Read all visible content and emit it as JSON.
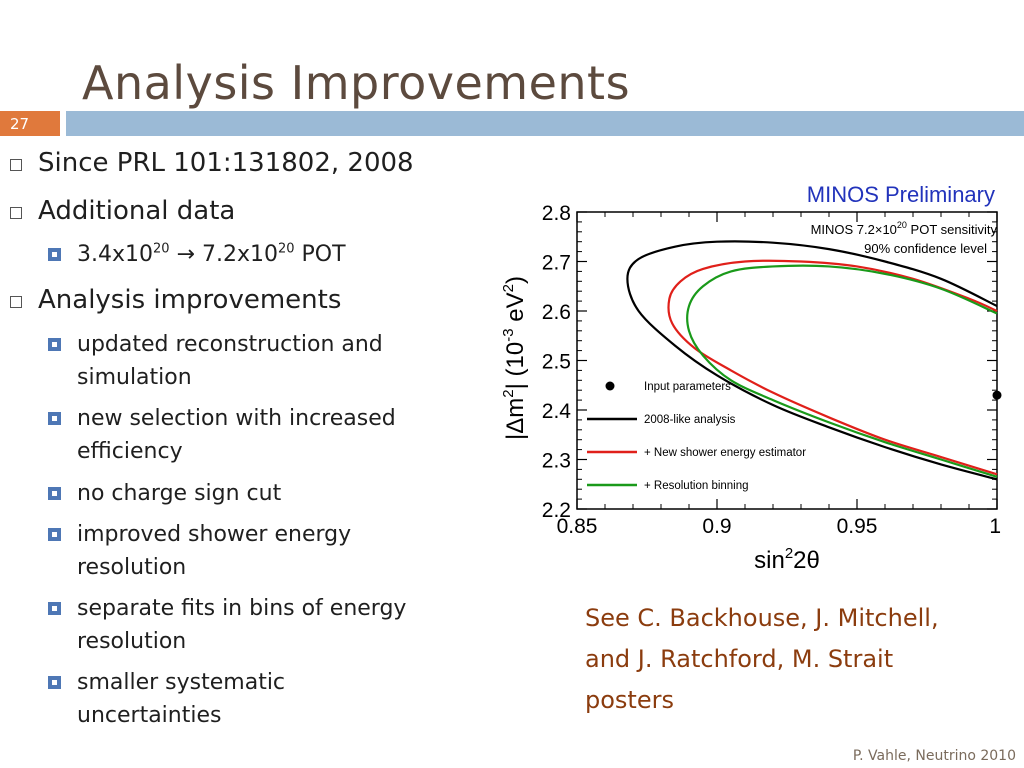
{
  "slide": {
    "title": "Analysis Improvements",
    "number": "27",
    "footer": "P. Vahle, Neutrino 2010"
  },
  "bullets": {
    "b1": "Since PRL 101:131802, 2008",
    "b2": "Additional data",
    "b2_sub": {
      "pre": "3.4x10",
      "exp1": "20",
      "mid": " → 7.2x10",
      "exp2": "20",
      "post": " POT"
    },
    "b3": "Analysis improvements",
    "b3_subs": [
      {
        "line1": "updated reconstruction and",
        "line2": "simulation"
      },
      {
        "line1": "new selection with increased",
        "line2": "efficiency"
      },
      {
        "line1": "no charge sign cut",
        "line2": ""
      },
      {
        "line1": "improved shower energy",
        "line2": "resolution"
      },
      {
        "line1": "separate fits in bins of energy",
        "line2": "resolution"
      },
      {
        "line1": "smaller systematic",
        "line2": "uncertainties"
      }
    ]
  },
  "credit": {
    "line1": "See C. Backhouse, J. Mitchell,",
    "line2": "and J. Ratchford, M. Strait",
    "line3": "posters"
  },
  "chart_data": {
    "type": "line",
    "title": "MINOS Preliminary",
    "annotation_line1_pre": "MINOS 7.2×10",
    "annotation_line1_exp": "20",
    "annotation_line1_post": " POT sensitivity",
    "annotation_line2": "90% confidence level",
    "xlabel_pre": "sin",
    "xlabel_exp": "2",
    "xlabel_post": "2θ",
    "ylabel_pre": "|Δm",
    "ylabel_exp1": "2",
    "ylabel_mid": "| (10",
    "ylabel_exp2": "-3",
    "ylabel_unit": " eV",
    "ylabel_exp3": "2",
    "ylabel_end": ")",
    "xlim": [
      0.85,
      1.0
    ],
    "ylim": [
      2.2,
      2.8
    ],
    "x_ticks": [
      "0.85",
      "0.9",
      "0.95",
      "1"
    ],
    "x_tick_values": [
      0.85,
      0.9,
      0.95,
      1.0
    ],
    "y_ticks": [
      "2.2",
      "2.3",
      "2.4",
      "2.5",
      "2.6",
      "2.7",
      "2.8"
    ],
    "y_tick_values": [
      2.2,
      2.3,
      2.4,
      2.5,
      2.6,
      2.7,
      2.8
    ],
    "input_point": {
      "x": 1.0,
      "y": 2.43
    },
    "legend": [
      {
        "label": "Input parameters",
        "kind": "point",
        "color": "#000000"
      },
      {
        "label": "2008-like analysis",
        "kind": "line",
        "color": "#000000"
      },
      {
        "label": "+ New shower energy estimator",
        "kind": "line",
        "color": "#e0201a"
      },
      {
        "label": "+ Resolution binning",
        "kind": "line",
        "color": "#1a9a1a"
      }
    ],
    "series": [
      {
        "color": "#000000",
        "x": [
          1.0,
          0.98,
          0.96,
          0.94,
          0.92,
          0.9,
          0.885,
          0.872,
          0.868,
          0.872,
          0.885,
          0.9,
          0.92,
          0.94,
          0.96,
          0.98,
          1.0
        ],
        "y": [
          2.26,
          2.29,
          2.325,
          2.365,
          2.41,
          2.47,
          2.53,
          2.6,
          2.665,
          2.705,
          2.73,
          2.74,
          2.738,
          2.725,
          2.7,
          2.665,
          2.61
        ]
      },
      {
        "color": "#e0201a",
        "x": [
          1.0,
          0.98,
          0.96,
          0.94,
          0.92,
          0.905,
          0.892,
          0.884,
          0.883,
          0.887,
          0.895,
          0.91,
          0.93,
          0.95,
          0.97,
          0.99,
          1.0
        ],
        "y": [
          2.27,
          2.305,
          2.34,
          2.385,
          2.435,
          2.48,
          2.525,
          2.575,
          2.625,
          2.66,
          2.685,
          2.7,
          2.7,
          2.69,
          2.665,
          2.625,
          2.6
        ]
      },
      {
        "color": "#1a9a1a",
        "x": [
          1.0,
          0.98,
          0.96,
          0.94,
          0.92,
          0.905,
          0.895,
          0.89,
          0.89,
          0.895,
          0.905,
          0.92,
          0.94,
          0.96,
          0.98,
          1.0
        ],
        "y": [
          2.265,
          2.3,
          2.335,
          2.375,
          2.42,
          2.46,
          2.51,
          2.56,
          2.61,
          2.65,
          2.68,
          2.69,
          2.69,
          2.675,
          2.645,
          2.595
        ]
      }
    ],
    "grid": false
  }
}
